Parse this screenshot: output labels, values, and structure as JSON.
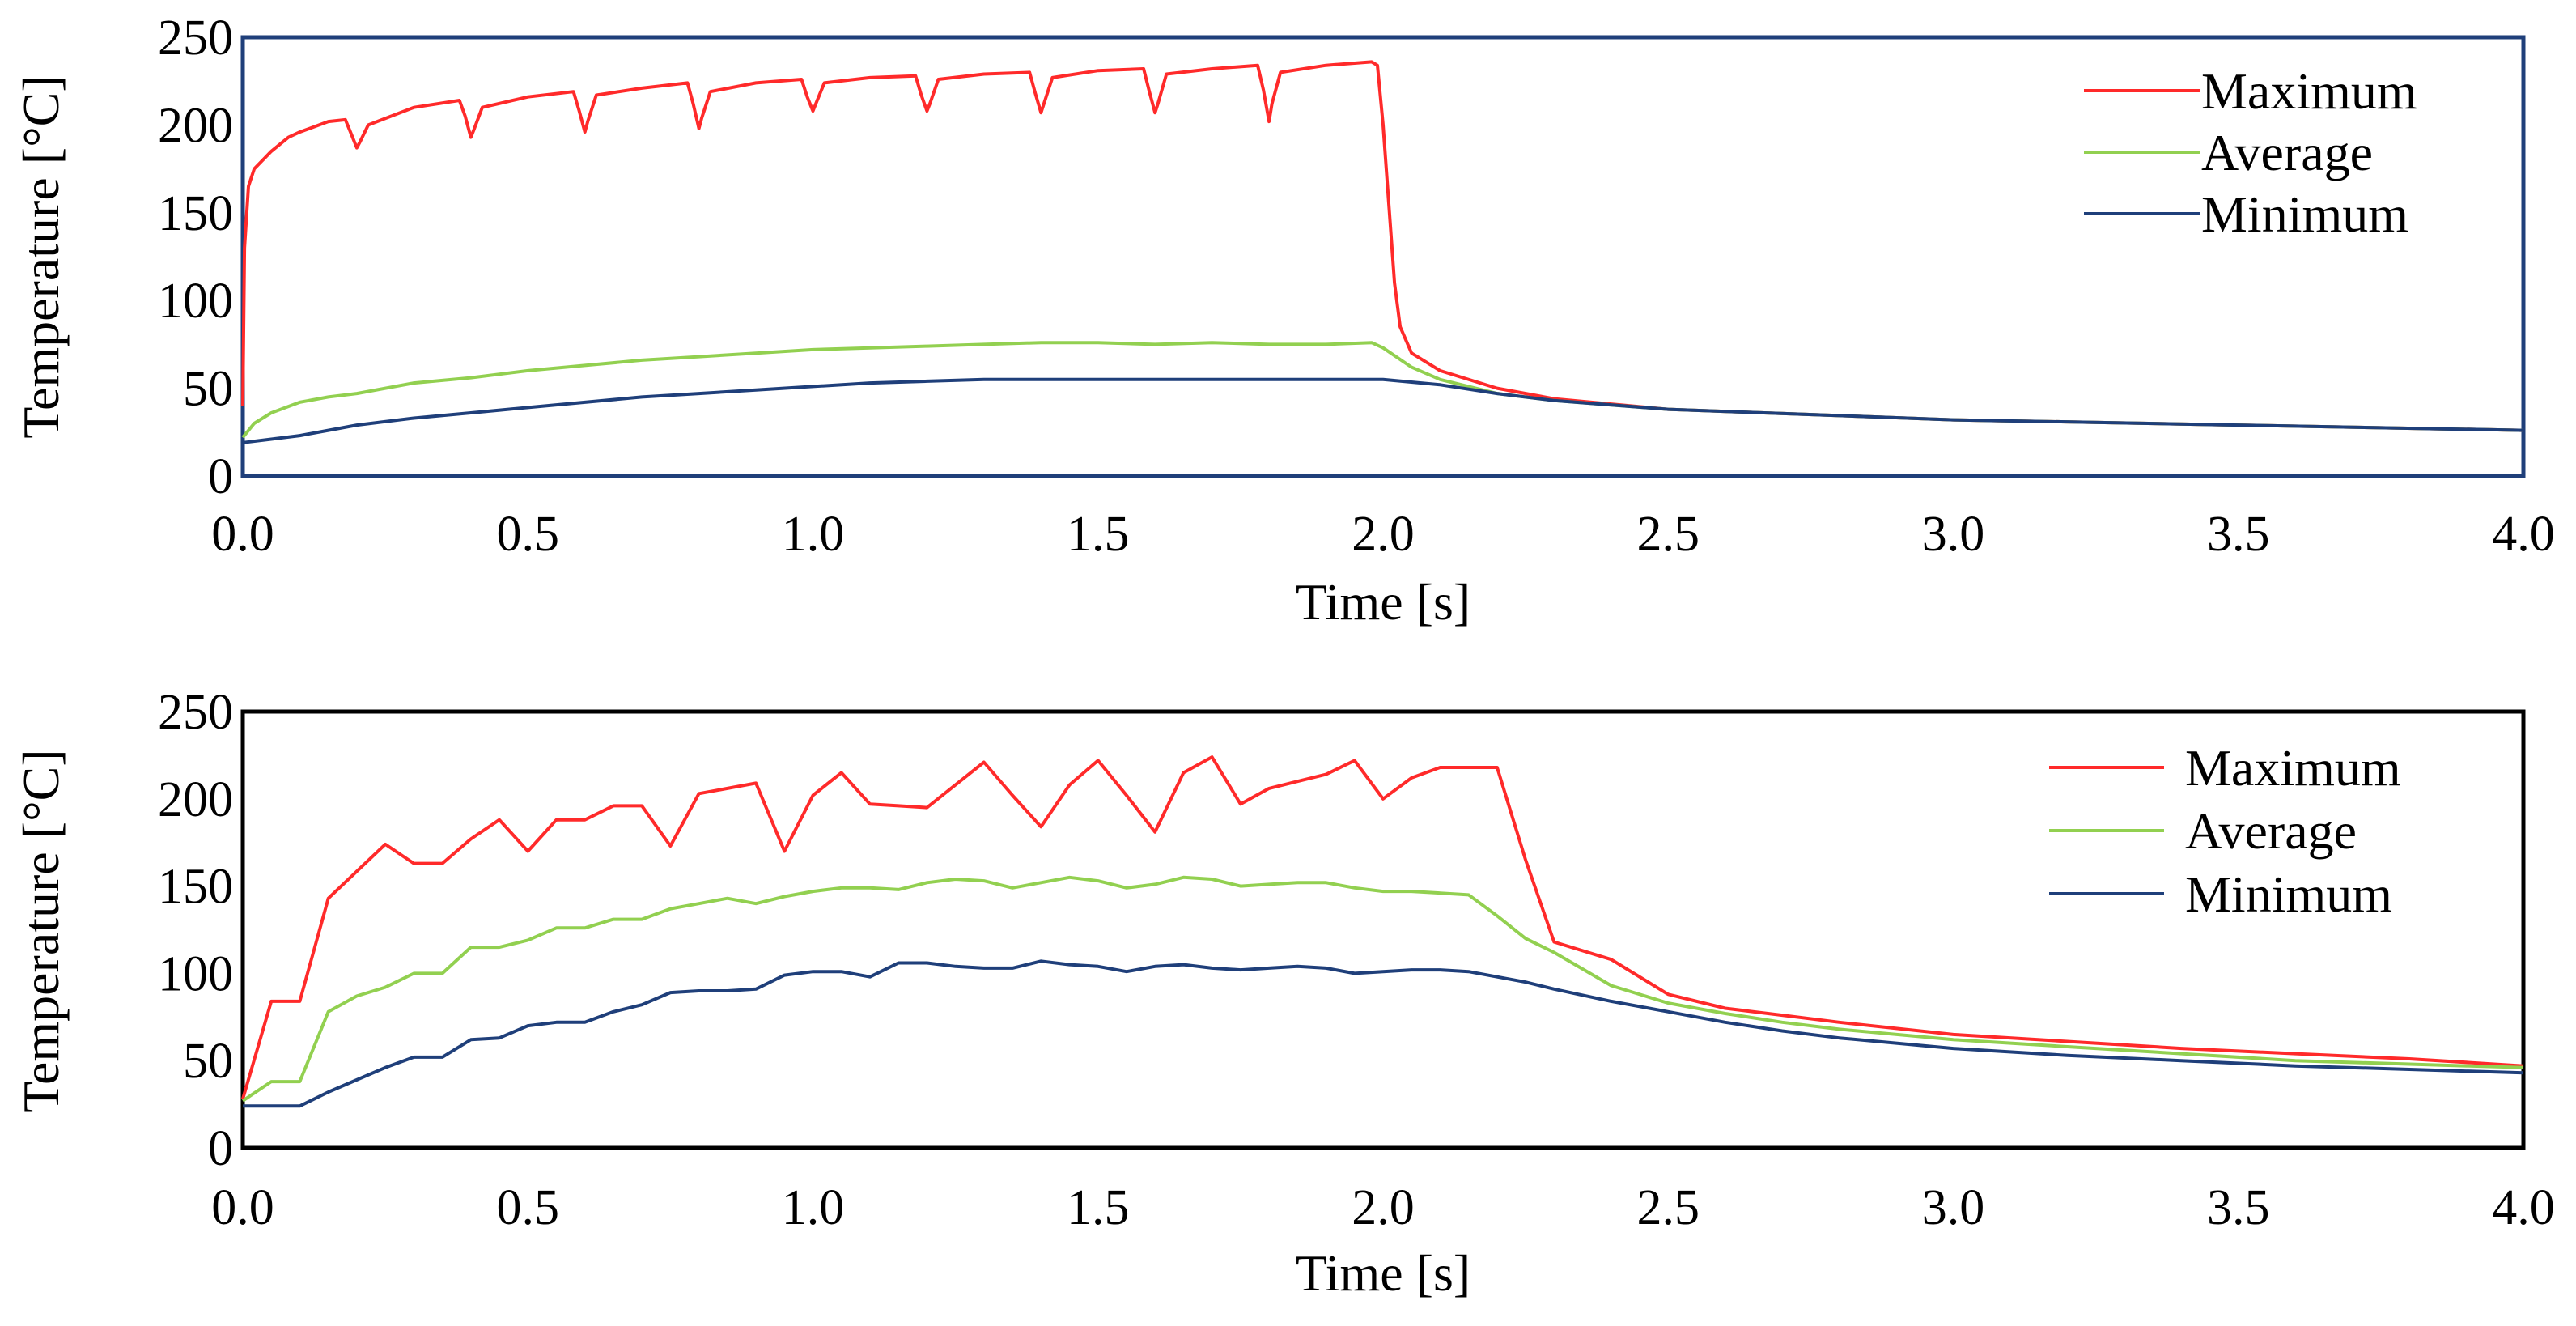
{
  "colors": {
    "maximum": "#ff2a2a",
    "average": "#92d050",
    "minimum": "#1f3f7a",
    "frame_top": "#1f3f7a",
    "frame_bottom": "#000000"
  },
  "chart_data": [
    {
      "type": "line",
      "title": "",
      "xlabel": "Time [s]",
      "ylabel": "Temperature [°C]",
      "xlim": [
        0,
        4
      ],
      "ylim": [
        0,
        250
      ],
      "xticks": [
        "0.0",
        "0.5",
        "1.0",
        "1.5",
        "2.0",
        "2.5",
        "3.0",
        "3.5",
        "4.0"
      ],
      "yticks": [
        "0",
        "50",
        "100",
        "150",
        "200",
        "250"
      ],
      "legend": "top-right",
      "series": [
        {
          "name": "Maximum",
          "color_key": "maximum",
          "x": [
            0.0,
            0.003,
            0.01,
            0.02,
            0.05,
            0.08,
            0.1,
            0.15,
            0.18,
            0.19,
            0.2,
            0.205,
            0.22,
            0.3,
            0.38,
            0.39,
            0.4,
            0.405,
            0.42,
            0.5,
            0.58,
            0.59,
            0.6,
            0.605,
            0.62,
            0.7,
            0.78,
            0.79,
            0.8,
            0.805,
            0.82,
            0.9,
            0.98,
            0.99,
            1.0,
            1.005,
            1.02,
            1.1,
            1.18,
            1.19,
            1.2,
            1.205,
            1.22,
            1.3,
            1.38,
            1.39,
            1.4,
            1.405,
            1.42,
            1.5,
            1.58,
            1.59,
            1.6,
            1.605,
            1.62,
            1.7,
            1.78,
            1.79,
            1.8,
            1.805,
            1.82,
            1.9,
            1.98,
            1.99,
            2.0,
            2.02,
            2.03,
            2.05,
            2.1,
            2.2,
            2.3,
            2.5,
            3.0,
            3.5,
            4.0
          ],
          "y": [
            40,
            130,
            165,
            175,
            185,
            193,
            196,
            202,
            203,
            195,
            187,
            190,
            200,
            210,
            214,
            205,
            193,
            197,
            210,
            216,
            219,
            208,
            196,
            202,
            217,
            221,
            224,
            212,
            198,
            204,
            219,
            224,
            226,
            216,
            208,
            212,
            224,
            227,
            228,
            217,
            208,
            212,
            226,
            229,
            230,
            218,
            207,
            212,
            227,
            231,
            232,
            219,
            207,
            212,
            229,
            232,
            234,
            220,
            202,
            212,
            230,
            234,
            236,
            234,
            200,
            110,
            85,
            70,
            60,
            50,
            44,
            38,
            32,
            29,
            26
          ]
        },
        {
          "name": "Average",
          "color_key": "average",
          "x": [
            0.0,
            0.02,
            0.05,
            0.1,
            0.15,
            0.2,
            0.3,
            0.4,
            0.5,
            0.6,
            0.7,
            0.8,
            0.9,
            1.0,
            1.1,
            1.2,
            1.3,
            1.4,
            1.5,
            1.6,
            1.7,
            1.8,
            1.9,
            1.98,
            2.0,
            2.05,
            2.1,
            2.2,
            2.3,
            2.5,
            3.0,
            3.5,
            4.0
          ],
          "y": [
            22,
            30,
            36,
            42,
            45,
            47,
            53,
            56,
            60,
            63,
            66,
            68,
            70,
            72,
            73,
            74,
            75,
            76,
            76,
            75,
            76,
            75,
            75,
            76,
            73,
            62,
            55,
            47,
            43,
            38,
            32,
            29,
            26
          ]
        },
        {
          "name": "Minimum",
          "color_key": "minimum",
          "x": [
            0.0,
            0.05,
            0.1,
            0.15,
            0.2,
            0.3,
            0.4,
            0.5,
            0.6,
            0.7,
            0.8,
            0.9,
            1.0,
            1.1,
            1.2,
            1.3,
            1.4,
            1.5,
            1.6,
            1.7,
            1.8,
            1.9,
            2.0,
            2.1,
            2.2,
            2.3,
            2.5,
            3.0,
            3.5,
            4.0
          ],
          "y": [
            19,
            21,
            23,
            26,
            29,
            33,
            36,
            39,
            42,
            45,
            47,
            49,
            51,
            53,
            54,
            55,
            55,
            55,
            55,
            55,
            55,
            55,
            55,
            52,
            47,
            43,
            38,
            32,
            29,
            26
          ]
        }
      ]
    },
    {
      "type": "line",
      "title": "",
      "xlabel": "Time [s]",
      "ylabel": "Temperature [°C]",
      "xlim": [
        0,
        4
      ],
      "ylim": [
        0,
        250
      ],
      "xticks": [
        "0.0",
        "0.5",
        "1.0",
        "1.5",
        "2.0",
        "2.5",
        "3.0",
        "3.5",
        "4.0"
      ],
      "yticks": [
        "0",
        "50",
        "100",
        "150",
        "200",
        "250"
      ],
      "legend": "top-right",
      "series": [
        {
          "name": "Maximum",
          "color_key": "maximum",
          "x": [
            0.0,
            0.05,
            0.1,
            0.15,
            0.25,
            0.3,
            0.35,
            0.4,
            0.45,
            0.5,
            0.55,
            0.6,
            0.65,
            0.7,
            0.75,
            0.8,
            0.85,
            0.9,
            0.95,
            1.0,
            1.05,
            1.1,
            1.15,
            1.2,
            1.25,
            1.3,
            1.35,
            1.4,
            1.45,
            1.5,
            1.55,
            1.6,
            1.65,
            1.7,
            1.75,
            1.8,
            1.85,
            1.9,
            1.95,
            2.0,
            2.05,
            2.1,
            2.15,
            2.2,
            2.25,
            2.3,
            2.4,
            2.5,
            2.6,
            2.7,
            2.8,
            3.0,
            3.2,
            3.4,
            3.6,
            3.8,
            4.0
          ],
          "y": [
            28,
            84,
            84,
            143,
            174,
            163,
            163,
            177,
            188,
            170,
            188,
            188,
            196,
            196,
            173,
            203,
            206,
            209,
            170,
            202,
            215,
            197,
            196,
            195,
            208,
            221,
            202,
            184,
            208,
            222,
            202,
            181,
            215,
            224,
            197,
            206,
            210,
            214,
            222,
            200,
            212,
            218,
            218,
            218,
            165,
            118,
            108,
            88,
            80,
            76,
            72,
            65,
            61,
            57,
            54,
            51,
            47
          ]
        },
        {
          "name": "Average",
          "color_key": "average",
          "x": [
            0.0,
            0.05,
            0.1,
            0.15,
            0.2,
            0.25,
            0.3,
            0.35,
            0.4,
            0.45,
            0.5,
            0.55,
            0.6,
            0.65,
            0.7,
            0.75,
            0.8,
            0.85,
            0.9,
            0.95,
            1.0,
            1.05,
            1.1,
            1.15,
            1.2,
            1.25,
            1.3,
            1.35,
            1.4,
            1.45,
            1.5,
            1.55,
            1.6,
            1.65,
            1.7,
            1.75,
            1.8,
            1.85,
            1.9,
            1.95,
            2.0,
            2.05,
            2.1,
            2.15,
            2.2,
            2.25,
            2.3,
            2.4,
            2.5,
            2.6,
            2.7,
            2.8,
            3.0,
            3.2,
            3.4,
            3.6,
            3.8,
            4.0
          ],
          "y": [
            27,
            38,
            38,
            78,
            87,
            92,
            100,
            100,
            115,
            115,
            119,
            126,
            126,
            131,
            131,
            137,
            140,
            143,
            140,
            144,
            147,
            149,
            149,
            148,
            152,
            154,
            153,
            149,
            152,
            155,
            153,
            149,
            151,
            155,
            154,
            150,
            151,
            152,
            152,
            149,
            147,
            147,
            146,
            145,
            133,
            120,
            112,
            93,
            83,
            77,
            72,
            68,
            62,
            58,
            54,
            50,
            48,
            46
          ]
        },
        {
          "name": "Minimum",
          "color_key": "minimum",
          "x": [
            0.0,
            0.05,
            0.1,
            0.15,
            0.2,
            0.25,
            0.3,
            0.35,
            0.4,
            0.45,
            0.5,
            0.55,
            0.6,
            0.65,
            0.7,
            0.75,
            0.8,
            0.85,
            0.9,
            0.95,
            1.0,
            1.05,
            1.1,
            1.15,
            1.2,
            1.25,
            1.3,
            1.35,
            1.4,
            1.45,
            1.5,
            1.55,
            1.6,
            1.65,
            1.7,
            1.75,
            1.8,
            1.85,
            1.9,
            1.95,
            2.0,
            2.05,
            2.1,
            2.15,
            2.2,
            2.25,
            2.3,
            2.4,
            2.5,
            2.6,
            2.7,
            2.8,
            3.0,
            3.2,
            3.4,
            3.6,
            3.8,
            4.0
          ],
          "y": [
            24,
            24,
            24,
            32,
            39,
            46,
            52,
            52,
            62,
            63,
            70,
            72,
            72,
            78,
            82,
            89,
            90,
            90,
            91,
            99,
            101,
            101,
            98,
            106,
            106,
            104,
            103,
            103,
            107,
            105,
            104,
            101,
            104,
            105,
            103,
            102,
            103,
            104,
            103,
            100,
            101,
            102,
            102,
            101,
            98,
            95,
            91,
            84,
            78,
            72,
            67,
            63,
            57,
            53,
            50,
            47,
            45,
            43
          ]
        }
      ]
    }
  ]
}
